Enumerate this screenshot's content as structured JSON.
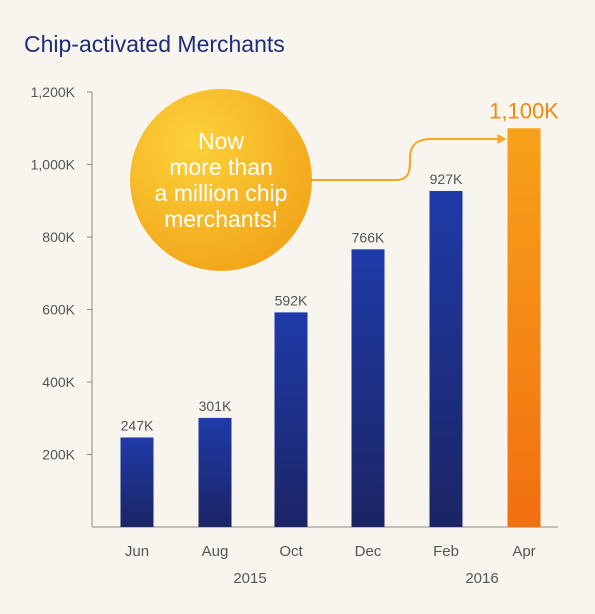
{
  "chart_data": {
    "type": "bar",
    "title": "Chip-activated Merchants",
    "categories": [
      "Jun",
      "Aug",
      "Oct",
      "Dec",
      "Feb",
      "Apr"
    ],
    "values": [
      247,
      301,
      592,
      766,
      927,
      1100
    ],
    "data_labels": [
      "247K",
      "301K",
      "592K",
      "766K",
      "927K",
      "1,100K"
    ],
    "y_ticks": [
      200,
      400,
      600,
      800,
      1000,
      1200
    ],
    "y_tick_labels": [
      "200K",
      "400K",
      "600K",
      "800K",
      "1,000K",
      "1,200K"
    ],
    "ylim": [
      0,
      1200
    ],
    "year_labels": [
      "2015",
      "2016"
    ],
    "callout_lines": [
      "Now",
      "more than",
      "a million chip",
      "merchants!"
    ],
    "highlight_index": 5,
    "grid": false,
    "colors": {
      "background": "#f7f5ee",
      "title": "#1f2d7a",
      "bar_top": "#1f3ba8",
      "bar_bottom": "#1b2464",
      "highlight_top": "#f7a21a",
      "highlight_bottom": "#f26f10",
      "highlight_label": "#f08a12",
      "callout_light": "#fcd23a",
      "callout_dark": "#f2a51a",
      "callout_text": "#ffffff",
      "axis": "#8a8a8a",
      "text": "#555555",
      "arrow": "#f5a623"
    }
  }
}
